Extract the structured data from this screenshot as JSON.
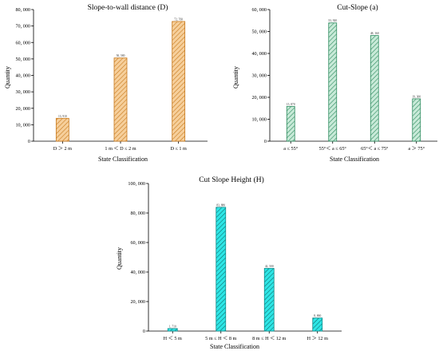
{
  "chart_data": [
    {
      "type": "bar",
      "title": "Slope-to-wall distance (D)",
      "xlabel": "State Classification",
      "ylabel": "Quantity",
      "categories": [
        "D ＞ 2 m",
        "1 m ＜ D ≤ 2 m",
        "D ≤ 1 m"
      ],
      "values": [
        13910,
        50580,
        72760
      ],
      "value_labels": [
        "13, 910",
        "50, 580",
        "72, 760"
      ],
      "ylim": [
        0,
        80000
      ],
      "yticks": [
        0,
        10000,
        20000,
        30000,
        40000,
        50000,
        60000,
        70000,
        80000
      ],
      "ytick_labels": [
        "0",
        "10, 000",
        "20, 000",
        "30, 000",
        "40, 000",
        "50, 000",
        "60, 000",
        "70, 000",
        "80, 000"
      ],
      "colors": {
        "fill": "#f6cf9b",
        "stroke": "#c8791c",
        "hatch": "#c8791c"
      },
      "grid": false
    },
    {
      "type": "bar",
      "title": "Cut-Slope (a)",
      "xlabel": "State Classification",
      "ylabel": "Quantity",
      "categories": [
        "a ≤ 55°",
        "55°＜ a ≤ 65°",
        "65°＜ a ≤ 75°",
        "a ＞ 75°"
      ],
      "values": [
        15870,
        53920,
        48160,
        19300
      ],
      "value_labels": [
        "15, 870",
        "53, 920",
        "48, 160",
        "19, 300"
      ],
      "ylim": [
        0,
        60000
      ],
      "yticks": [
        0,
        10000,
        20000,
        30000,
        40000,
        50000,
        60000
      ],
      "ytick_labels": [
        "0",
        "10, 000",
        "20, 000",
        "30, 000",
        "40, 000",
        "50, 000",
        "60, 000"
      ],
      "colors": {
        "fill": "#c8ead8",
        "stroke": "#2c8a5e",
        "hatch": "#2c8a5e"
      },
      "grid": false
    },
    {
      "type": "bar",
      "title": "Cut Slope Height (H)",
      "xlabel": "State Classification",
      "ylabel": "Quantity",
      "categories": [
        "H ＜ 5 m",
        "5 m ≤ H ＜ 8 m",
        "8 m ≤ H ＜ 12 m",
        "H ＞ 12 m"
      ],
      "values": [
        1710,
        83880,
        42500,
        8860
      ],
      "value_labels": [
        "1, 710",
        "83, 880",
        "42, 500",
        "8, 860"
      ],
      "ylim": [
        0,
        100000
      ],
      "yticks": [
        0,
        20000,
        40000,
        60000,
        80000,
        100000
      ],
      "ytick_labels": [
        "0",
        "20, 000",
        "40, 000",
        "60, 000",
        "80, 000",
        "100, 000"
      ],
      "colors": {
        "fill": "#2ee6e6",
        "stroke": "#138c8c",
        "hatch": "#0c6f6f"
      },
      "grid": false
    }
  ]
}
